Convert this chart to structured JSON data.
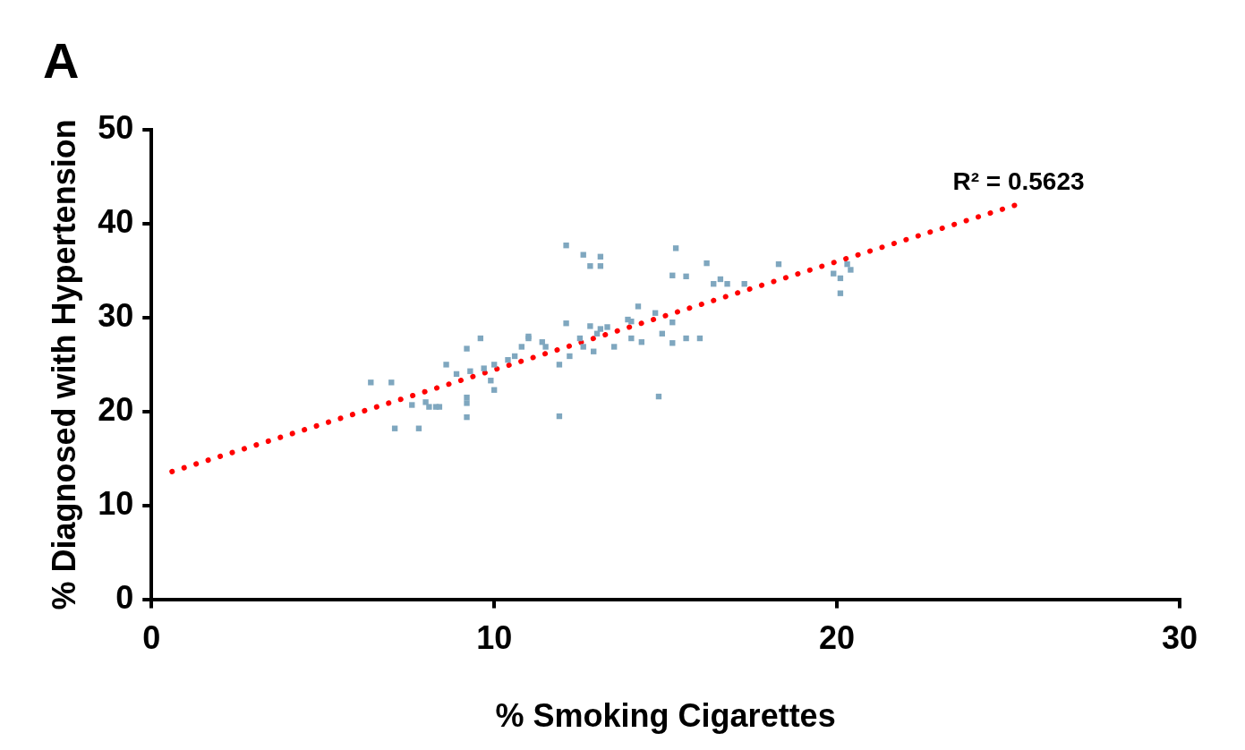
{
  "chart_data": {
    "type": "scatter",
    "title": "A",
    "xlabel": "% Smoking Cigarettes",
    "ylabel": "% Diagnosed with Hypertension",
    "xlim": [
      0,
      30
    ],
    "xticks": [
      0,
      10,
      20,
      30
    ],
    "ylim": [
      0,
      50
    ],
    "yticks": [
      0,
      10,
      20,
      30,
      40,
      50
    ],
    "grid": false,
    "legend": false,
    "series": [
      {
        "type": "scatter",
        "color": "#7fa7bf",
        "marker": "square",
        "x": [
          6.4,
          7.0,
          7.1,
          7.8,
          7.6,
          8.0,
          8.1,
          8.3,
          8.4,
          8.6,
          8.9,
          9.2,
          9.2,
          9.2,
          9.2,
          9.6,
          9.3,
          9.7,
          9.9,
          10.0,
          10.0,
          10.4,
          10.6,
          10.8,
          11.0,
          11.0,
          11.4,
          11.5,
          11.9,
          11.9,
          12.1,
          12.1,
          12.2,
          12.6,
          12.8,
          12.8,
          13.1,
          13.1,
          13.1,
          13.3,
          12.5,
          12.6,
          12.9,
          13.0,
          13.5,
          13.9,
          14.0,
          14.2,
          14.0,
          14.3,
          14.7,
          14.9,
          15.2,
          15.3,
          15.2,
          15.6,
          15.2,
          15.6,
          16.0,
          16.2,
          14.8,
          16.4,
          16.6,
          16.8,
          17.3,
          18.3,
          19.9,
          20.1,
          20.3,
          20.4,
          20.1
        ],
        "values": [
          23.1,
          23.1,
          18.2,
          18.2,
          20.7,
          21.0,
          20.5,
          20.5,
          20.5,
          25.0,
          24.0,
          26.7,
          21.5,
          19.4,
          20.9,
          27.8,
          24.3,
          24.6,
          23.3,
          25.0,
          22.3,
          25.5,
          25.9,
          26.9,
          27.8,
          28.0,
          27.4,
          26.9,
          19.5,
          25.0,
          37.7,
          29.4,
          25.9,
          36.7,
          29.1,
          35.5,
          36.5,
          35.5,
          28.8,
          29.0,
          27.8,
          26.9,
          26.4,
          28.3,
          26.9,
          29.8,
          29.6,
          31.2,
          27.8,
          27.4,
          30.5,
          28.3,
          29.5,
          37.4,
          34.5,
          34.4,
          27.3,
          27.8,
          27.8,
          35.8,
          21.6,
          33.6,
          34.1,
          33.6,
          33.6,
          35.7,
          34.7,
          32.6,
          35.7,
          35.1,
          34.2
        ]
      },
      {
        "type": "line",
        "color": "#ff0000",
        "line_style": "dotted",
        "marker": "none",
        "x": [
          0.6,
          25.3
        ],
        "values": [
          13.6,
          42.1
        ]
      }
    ],
    "annotations": [
      {
        "text": "R² = 0.5623",
        "x": 25.3,
        "y": 42.1
      }
    ]
  }
}
